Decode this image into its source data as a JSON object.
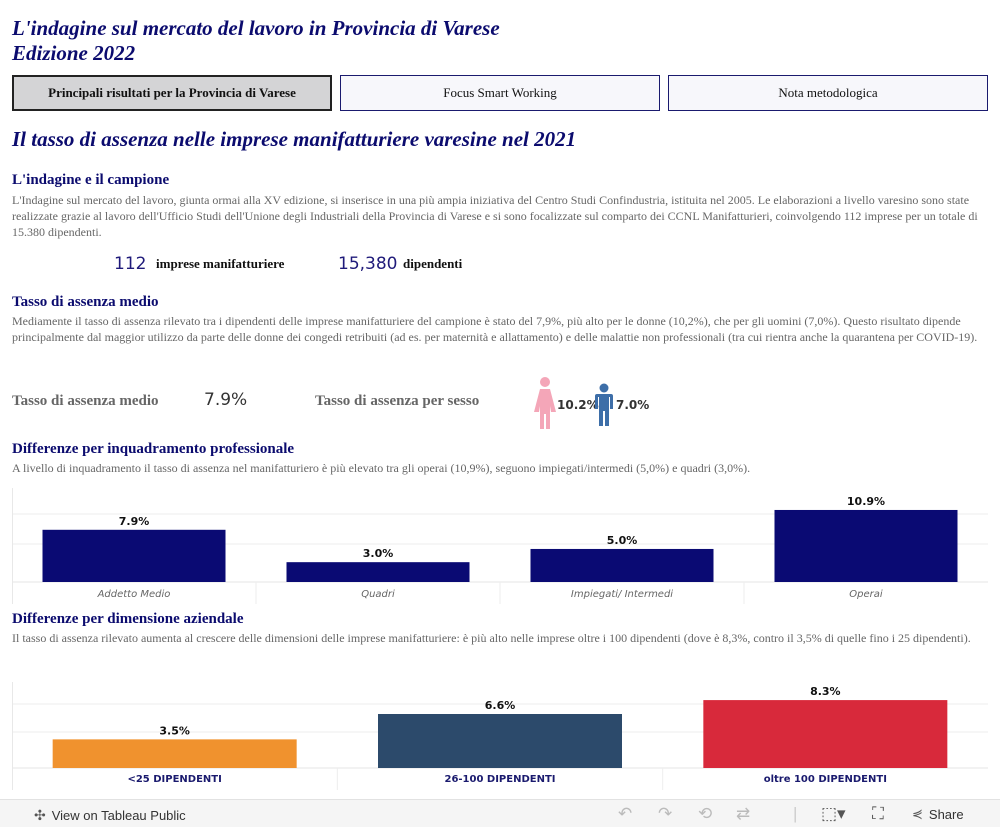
{
  "header": {
    "title_line1": "L'indagine sul mercato del lavoro in Provincia di Varese",
    "title_line2": "Edizione 2022"
  },
  "tabs": [
    {
      "label": "Principali risultati per la Provincia di Varese"
    },
    {
      "label": "Focus Smart Working"
    },
    {
      "label": "Nota metodologica"
    }
  ],
  "main": {
    "subtitle": "Il tasso di assenza nelle imprese manifatturiere varesine nel 2021",
    "campione": {
      "heading": "L'indagine e il campione",
      "text": "L'Indagine sul mercato del lavoro, giunta ormai alla XV edizione, si inserisce in una più ampia iniziativa del Centro Studi Confindustria, istituita nel 2005. Le elaborazioni a livello varesino sono state realizzate grazie al lavoro dell'Ufficio Studi dell'Unione degli Industriali della Provincia di Varese e si sono focalizzate sul comparto dei CCNL Manifatturieri, coinvolgendo 112 imprese per un totale di 15.380 dipendenti.",
      "kpi_imprese_value": "112",
      "kpi_imprese_label": "imprese manifatturiere",
      "kpi_dipendenti_value": "15,380",
      "kpi_dipendenti_label": "dipendenti"
    },
    "tasso": {
      "heading": "Tasso di assenza medio",
      "text": "Mediamente il tasso di assenza rilevato tra i dipendenti delle imprese manifatturiere del campione è stato del 7,9%, più alto per le donne (10,2%), che per gli uomini (7,0%). Questo risultato dipende principalmente dal maggior utilizzo da parte delle donne dei congedi retribuiti (ad es. per maternità e allattamento) e delle malattie non professionali (tra cui rientra anche la quarantena per COVID-19).",
      "medio_label": "Tasso di assenza medio",
      "medio_value": "7.9%",
      "sesso_label": "Tasso di assenza per sesso",
      "female_value": "10.2%",
      "male_value": "7.0%",
      "female_color": "#f4a6b8",
      "male_color": "#3d6ea8"
    },
    "inquadramento": {
      "heading": "Differenze per inquadramento professionale",
      "text": "A livello di inquadramento il tasso di assenza nel manifatturiero è più elevato tra gli operai (10,9%), seguono impiegati/intermedi (5,0%) e quadri (3,0%)."
    },
    "dimensione": {
      "heading": "Differenze per dimensione aziendale",
      "text": "Il tasso di assenza rilevato aumenta al crescere delle dimensioni delle imprese manifatturiere: è più alto nelle imprese oltre i 100 dipendenti (dove è 8,3%, contro il 3,5% di quelle fino i 25 dipendenti)."
    }
  },
  "chart_data": [
    {
      "type": "bar",
      "title": "Differenze per inquadramento professionale",
      "categories": [
        "Addetto Medio",
        "Quadri",
        "Impiegati/ Intermedi",
        "Operai"
      ],
      "values": [
        7.9,
        3.0,
        5.0,
        10.9
      ],
      "labels": [
        "7.9%",
        "3.0%",
        "5.0%",
        "10.9%"
      ],
      "colors": [
        "#0a0a73",
        "#0a0a73",
        "#0a0a73",
        "#0a0a73"
      ],
      "ylim": [
        0,
        11.5
      ]
    },
    {
      "type": "bar",
      "title": "Differenze per dimensione aziendale",
      "categories": [
        "<25 DIPENDENTI",
        "26-100 DIPENDENTI",
        "oltre 100 DIPENDENTI"
      ],
      "values": [
        3.5,
        6.6,
        8.3
      ],
      "labels": [
        "3.5%",
        "6.6%",
        "8.3%"
      ],
      "colors": [
        "#f0922e",
        "#2c4a6b",
        "#d8293b"
      ],
      "ylim": [
        0,
        8.8
      ]
    }
  ],
  "footer": {
    "view_label": "View on Tableau Public",
    "share_label": "Share"
  }
}
